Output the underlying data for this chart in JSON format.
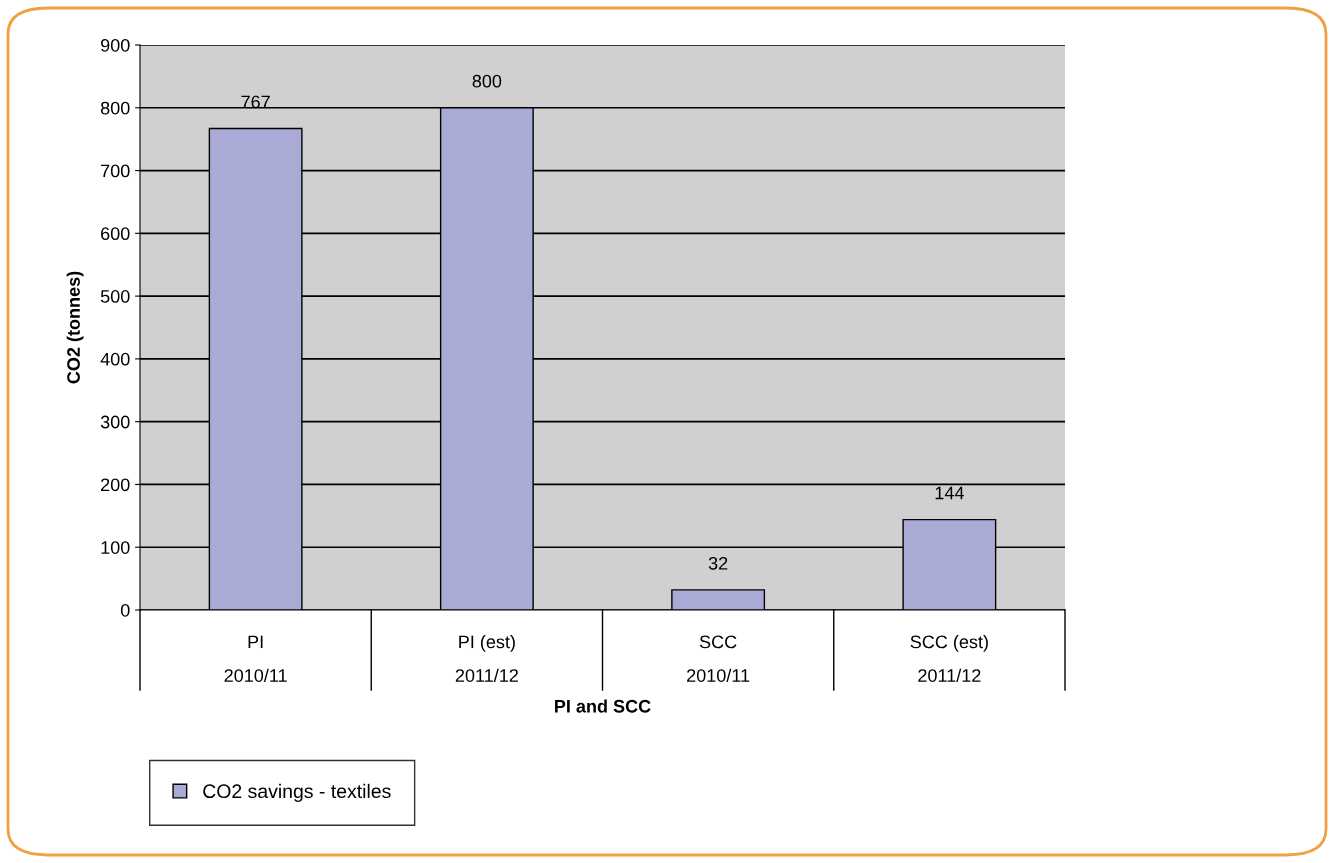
{
  "chart_data": {
    "type": "bar",
    "xlabel": "PI and SCC",
    "ylabel": "CO2 (tonnes)",
    "categories": [
      "PI\n\n2010/11",
      "PI (est)\n\n2011/12",
      "SCC\n\n2010/11",
      "SCC (est)\n\n2011/12"
    ],
    "series": [
      {
        "name": "CO2 savings - textiles",
        "color": "#aaaad6",
        "values": [
          767,
          800,
          32,
          144
        ]
      }
    ],
    "ylim": [
      0,
      900
    ],
    "yticks": [
      0,
      100,
      200,
      300,
      400,
      500,
      600,
      700,
      800,
      900
    ],
    "grid": "y",
    "data_labels": true,
    "legend": "bottom left"
  }
}
